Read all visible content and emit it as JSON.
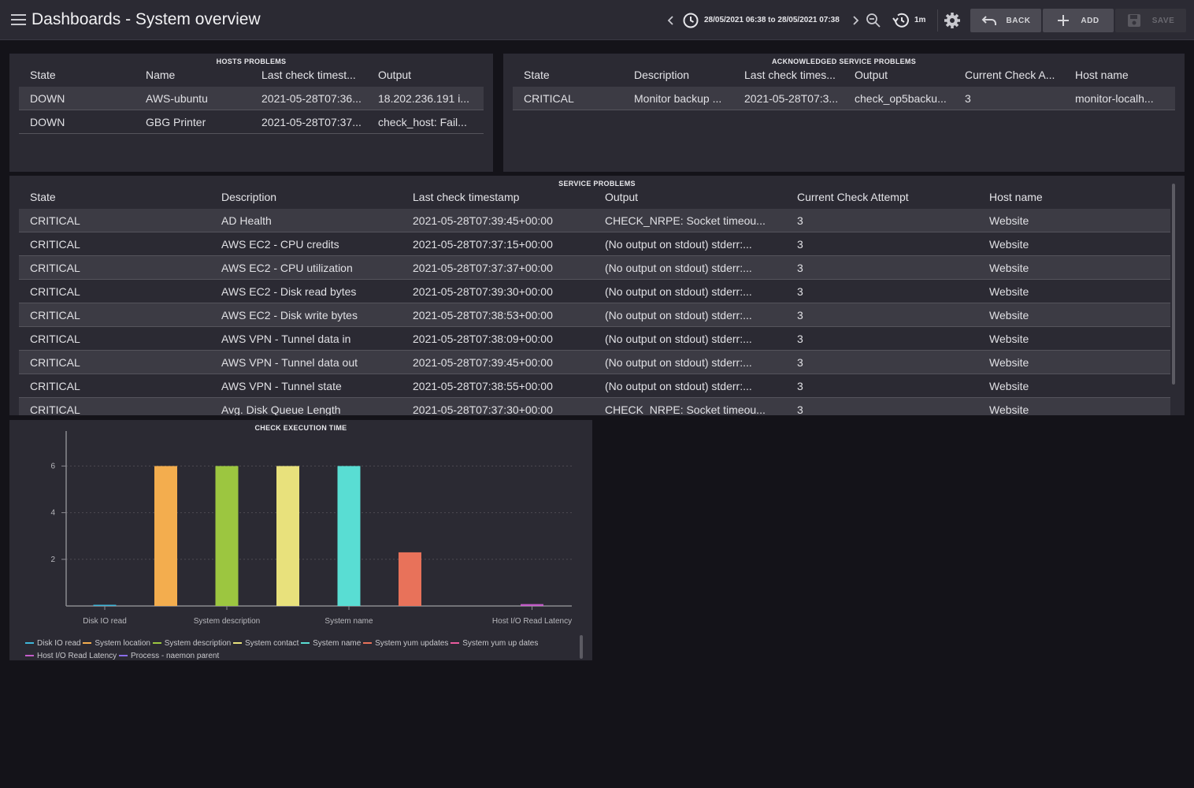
{
  "header": {
    "title": "Dashboards - System overview",
    "time_range": "28/05/2021 06:38 to 28/05/2021 07:38",
    "refresh_interval": "1m",
    "back_label": "BACK",
    "add_label": "ADD",
    "save_label": "SAVE"
  },
  "hosts_problems": {
    "title": "HOSTS PROBLEMS",
    "columns": [
      "State",
      "Name",
      "Last check timest...",
      "Output"
    ],
    "rows": [
      [
        "DOWN",
        "AWS-ubuntu",
        "2021-05-28T07:36...",
        "18.202.236.191 i..."
      ],
      [
        "DOWN",
        "GBG Printer",
        "2021-05-28T07:37...",
        "check_host: Fail..."
      ]
    ]
  },
  "ack_service_problems": {
    "title": "ACKNOWLEDGED SERVICE PROBLEMS",
    "columns": [
      "State",
      "Description",
      "Last check times...",
      "Output",
      "Current Check A...",
      "Host name"
    ],
    "rows": [
      [
        "CRITICAL",
        "Monitor backup ...",
        "2021-05-28T07:3...",
        "check_op5backu...",
        "3",
        "monitor-localh..."
      ]
    ]
  },
  "service_problems": {
    "title": "SERVICE PROBLEMS",
    "columns": [
      "State",
      "Description",
      "Last check timestamp",
      "Output",
      "Current Check Attempt",
      "Host name"
    ],
    "rows": [
      [
        "CRITICAL",
        "AD Health",
        "2021-05-28T07:39:45+00:00",
        "CHECK_NRPE: Socket timeou...",
        "3",
        "Website"
      ],
      [
        "CRITICAL",
        "AWS EC2 - CPU credits",
        "2021-05-28T07:37:15+00:00",
        "(No output on stdout) stderr:...",
        "3",
        "Website"
      ],
      [
        "CRITICAL",
        "AWS EC2 - CPU utilization",
        "2021-05-28T07:37:37+00:00",
        "(No output on stdout) stderr:...",
        "3",
        "Website"
      ],
      [
        "CRITICAL",
        "AWS EC2 - Disk read bytes",
        "2021-05-28T07:39:30+00:00",
        "(No output on stdout) stderr:...",
        "3",
        "Website"
      ],
      [
        "CRITICAL",
        "AWS EC2 - Disk write bytes",
        "2021-05-28T07:38:53+00:00",
        "(No output on stdout) stderr:...",
        "3",
        "Website"
      ],
      [
        "CRITICAL",
        "AWS VPN - Tunnel data in",
        "2021-05-28T07:38:09+00:00",
        "(No output on stdout) stderr:...",
        "3",
        "Website"
      ],
      [
        "CRITICAL",
        "AWS VPN - Tunnel data out",
        "2021-05-28T07:39:45+00:00",
        "(No output on stdout) stderr:...",
        "3",
        "Website"
      ],
      [
        "CRITICAL",
        "AWS VPN - Tunnel state",
        "2021-05-28T07:38:55+00:00",
        "(No output on stdout) stderr:...",
        "3",
        "Website"
      ],
      [
        "CRITICAL",
        "Avg. Disk Queue Length",
        "2021-05-28T07:37:30+00:00",
        "CHECK_NRPE: Socket timeou...",
        "3",
        "Website"
      ]
    ]
  },
  "chart_data": {
    "type": "bar",
    "title": "CHECK EXECUTION TIME",
    "categories": [
      "Disk IO read",
      "System location",
      "System description",
      "System contact",
      "System name",
      "System yum updates",
      "System yum updates",
      "Host I/O Read Latency",
      "Process - naemon parent"
    ],
    "x_tick_labels": [
      "Disk IO read",
      "System description",
      "System name",
      "Host I/O Read Latency"
    ],
    "values": [
      0.04,
      6.0,
      6.0,
      6.0,
      6.0,
      2.3,
      0,
      0.08,
      0
    ],
    "colors": [
      "#3fb6d9",
      "#f3ad4e",
      "#9cc640",
      "#e8e17c",
      "#59ddd3",
      "#e8725a",
      "#e95b9e",
      "#c45dc9",
      "#8a6de9"
    ],
    "legend": [
      "Disk IO read",
      "System location",
      "System description",
      "System contact",
      "System name",
      "System yum updates",
      "System yum up dates",
      "Host I/O Read Latency",
      "Process - naemon parent"
    ],
    "y_ticks": [
      2,
      4,
      6
    ],
    "ylim": [
      0,
      7.5
    ],
    "grid": true,
    "legend_position": "bottom"
  }
}
